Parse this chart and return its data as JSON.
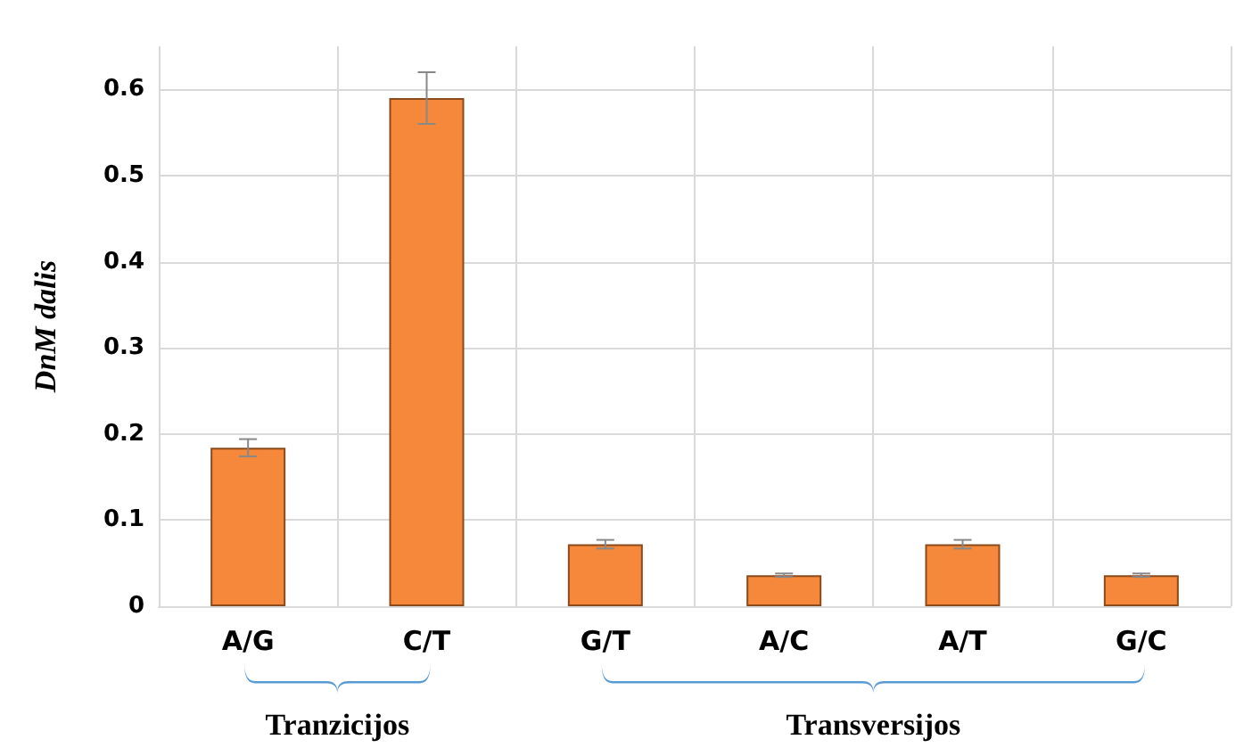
{
  "chart_data": {
    "type": "bar",
    "ylabel": "DnM dalis",
    "categories": [
      "A/G",
      "C/T",
      "G/T",
      "A/C",
      "A/T",
      "G/C"
    ],
    "values": [
      0.184,
      0.59,
      0.072,
      0.036,
      0.072,
      0.036
    ],
    "errors": [
      0.01,
      0.03,
      0.005,
      0.002,
      0.005,
      0.002
    ],
    "color": "#f5883a",
    "ylim": [
      0,
      0.65
    ],
    "yticks": [
      0,
      0.1,
      0.2,
      0.3,
      0.4,
      0.5,
      0.6
    ],
    "grid": true,
    "annotations": [
      "Tranzicijos",
      "Transversijos"
    ]
  }
}
